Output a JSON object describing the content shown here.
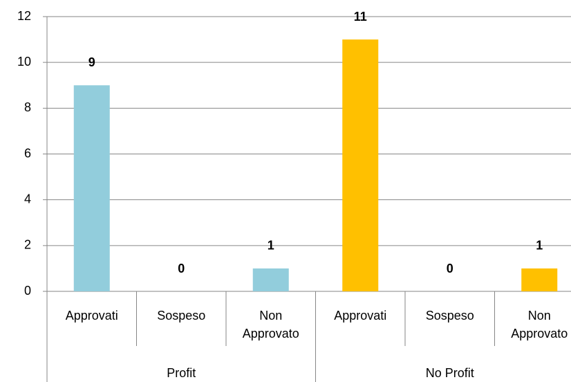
{
  "chart_data": {
    "type": "bar",
    "groups": [
      {
        "name": "Profit",
        "color": "#92cddc",
        "categories": [
          "Approvati",
          "Sospeso",
          "Non Approvato"
        ],
        "values": [
          9,
          0,
          1
        ]
      },
      {
        "name": "No Profit",
        "color": "#ffc000",
        "categories": [
          "Approvati",
          "Sospeso",
          "Non Approvato"
        ],
        "values": [
          11,
          0,
          1
        ]
      }
    ],
    "ylim": [
      0,
      12
    ],
    "yticks": [
      0,
      2,
      4,
      6,
      8,
      10,
      12
    ],
    "grid": true
  }
}
